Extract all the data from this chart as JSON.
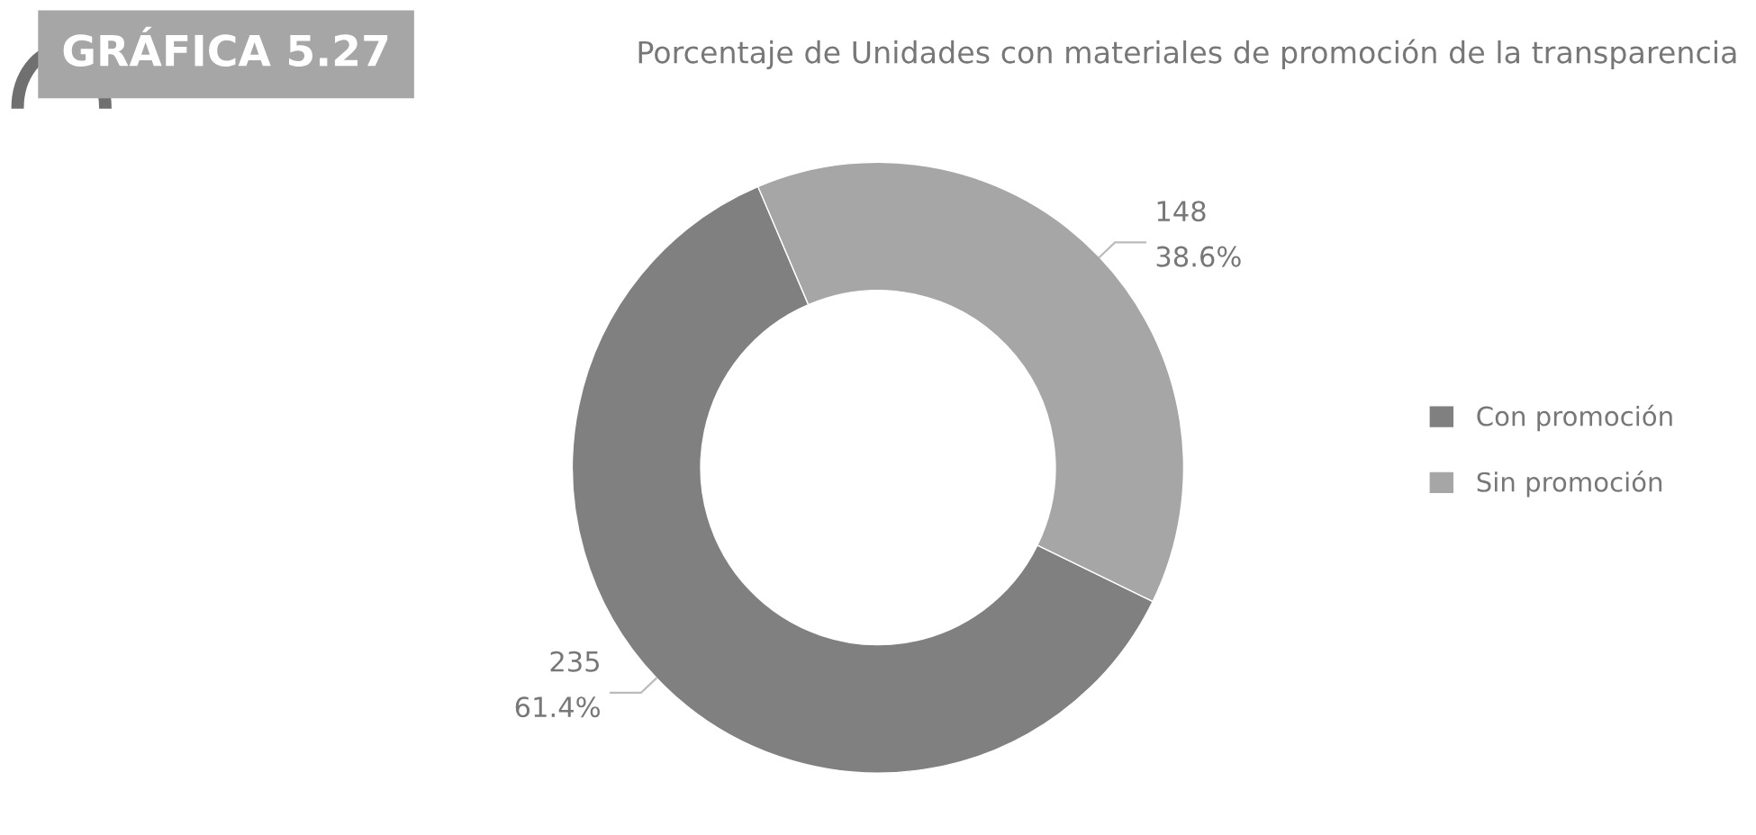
{
  "chart_data": {
    "type": "donut",
    "title": "GRÁFICA 5.27",
    "subtitle": "Porcentaje de Unidades con materiales de promoción de la transparencia",
    "categories": [
      "Con promoción",
      "Sin promoción"
    ],
    "values": [
      235,
      148
    ],
    "value_labels": [
      "235\n61.4%",
      "148\n38.6%"
    ],
    "colors": [
      "#808080",
      "#a6a6a6"
    ],
    "legend": "right"
  }
}
